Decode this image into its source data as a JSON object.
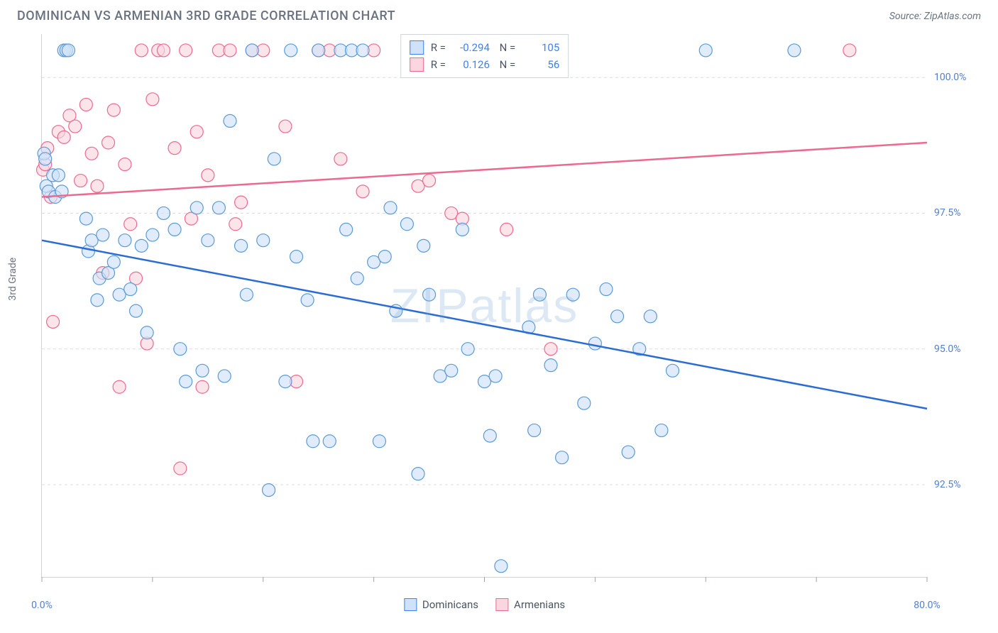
{
  "title": "DOMINICAN VS ARMENIAN 3RD GRADE CORRELATION CHART",
  "source": "Source: ZipAtlas.com",
  "watermark": "ZIPatlas",
  "y_axis_label": "3rd Grade",
  "x_range": {
    "min": 0,
    "max": 80,
    "min_label": "0.0%",
    "max_label": "80.0%"
  },
  "x_ticks_major": [
    0,
    10,
    20,
    30,
    40,
    50,
    60,
    70,
    80
  ],
  "y_range": {
    "min": 90.8,
    "max": 100.8
  },
  "y_ticks": [
    {
      "v": 92.5,
      "label": "92.5%"
    },
    {
      "v": 95.0,
      "label": "95.0%"
    },
    {
      "v": 97.5,
      "label": "97.5%"
    },
    {
      "v": 100.0,
      "label": "100.0%"
    }
  ],
  "grid_color": "#d9dde3",
  "legend_bottom": [
    {
      "label": "Dominicans",
      "fill": "#cfe2f9",
      "stroke": "#3b82f6"
    },
    {
      "label": "Armenians",
      "fill": "#fbd5e0",
      "stroke": "#ec6a8f"
    }
  ],
  "r_legend": [
    {
      "fill": "#cfe2f9",
      "stroke": "#3b82f6",
      "r": "-0.294",
      "n": "105"
    },
    {
      "fill": "#fbd5e0",
      "stroke": "#ec6a8f",
      "r": "0.126",
      "n": "56"
    }
  ],
  "series": {
    "dominicans": {
      "color_fill": "#cfe2f9",
      "color_stroke": "#5b9bd5",
      "marker_radius": 9,
      "trend": {
        "color": "#2b6cd4",
        "width": 2.5,
        "y_at_xmin": 97.0,
        "y_at_xmax": 93.9
      },
      "points": [
        [
          0.2,
          98.6
        ],
        [
          0.3,
          98.5
        ],
        [
          0.4,
          98.0
        ],
        [
          0.6,
          97.9
        ],
        [
          1.0,
          98.2
        ],
        [
          1.2,
          97.8
        ],
        [
          1.5,
          98.2
        ],
        [
          1.8,
          97.9
        ],
        [
          2.0,
          100.5
        ],
        [
          2.2,
          100.5
        ],
        [
          2.4,
          100.5
        ],
        [
          4.0,
          97.4
        ],
        [
          4.2,
          96.8
        ],
        [
          4.5,
          97.0
        ],
        [
          5.0,
          95.9
        ],
        [
          5.2,
          96.3
        ],
        [
          5.5,
          97.1
        ],
        [
          6.0,
          96.4
        ],
        [
          6.5,
          96.6
        ],
        [
          7.0,
          96.0
        ],
        [
          7.5,
          97.0
        ],
        [
          8.0,
          96.1
        ],
        [
          8.5,
          95.7
        ],
        [
          9.0,
          96.9
        ],
        [
          9.5,
          95.3
        ],
        [
          10.0,
          97.1
        ],
        [
          11.0,
          97.5
        ],
        [
          12.0,
          97.2
        ],
        [
          12.5,
          95.0
        ],
        [
          13.0,
          94.4
        ],
        [
          14.0,
          97.6
        ],
        [
          14.5,
          94.6
        ],
        [
          15.0,
          97.0
        ],
        [
          16.0,
          97.6
        ],
        [
          16.5,
          94.5
        ],
        [
          17.0,
          99.2
        ],
        [
          18.0,
          96.9
        ],
        [
          18.5,
          96.0
        ],
        [
          19.0,
          100.5
        ],
        [
          20.0,
          97.0
        ],
        [
          20.5,
          92.4
        ],
        [
          21.0,
          98.5
        ],
        [
          22.0,
          94.4
        ],
        [
          22.5,
          100.5
        ],
        [
          23.0,
          96.7
        ],
        [
          24.0,
          95.9
        ],
        [
          24.5,
          93.3
        ],
        [
          25.0,
          100.5
        ],
        [
          26.0,
          93.3
        ],
        [
          27.0,
          100.5
        ],
        [
          27.5,
          97.2
        ],
        [
          28.0,
          100.5
        ],
        [
          28.5,
          96.3
        ],
        [
          29.0,
          100.5
        ],
        [
          30.0,
          96.6
        ],
        [
          30.5,
          93.3
        ],
        [
          31.0,
          96.7
        ],
        [
          31.5,
          97.6
        ],
        [
          32.0,
          95.7
        ],
        [
          33.0,
          97.3
        ],
        [
          34.0,
          92.7
        ],
        [
          34.5,
          96.9
        ],
        [
          35.0,
          96.0
        ],
        [
          36.0,
          94.5
        ],
        [
          37.0,
          94.6
        ],
        [
          38.0,
          97.2
        ],
        [
          38.5,
          95.0
        ],
        [
          39.0,
          100.5
        ],
        [
          40.0,
          94.4
        ],
        [
          40.5,
          93.4
        ],
        [
          41.0,
          94.5
        ],
        [
          41.5,
          91.0
        ],
        [
          42.0,
          100.5
        ],
        [
          43.0,
          100.5
        ],
        [
          44.0,
          95.4
        ],
        [
          44.5,
          93.5
        ],
        [
          45.0,
          96.0
        ],
        [
          46.0,
          94.7
        ],
        [
          47.0,
          93.0
        ],
        [
          48.0,
          96.0
        ],
        [
          49.0,
          94.0
        ],
        [
          50.0,
          95.1
        ],
        [
          51.0,
          96.1
        ],
        [
          52.0,
          95.6
        ],
        [
          53.0,
          93.1
        ],
        [
          54.0,
          95.0
        ],
        [
          55.0,
          95.6
        ],
        [
          56.0,
          93.5
        ],
        [
          57.0,
          94.6
        ],
        [
          60.0,
          100.5
        ],
        [
          68.0,
          100.5
        ]
      ]
    },
    "armenians": {
      "color_fill": "#fbd5e0",
      "color_stroke": "#ec6a8f",
      "marker_radius": 9,
      "trend": {
        "color": "#ec6a8f",
        "width": 2.5,
        "y_at_xmin": 97.8,
        "y_at_xmax": 98.8
      },
      "points": [
        [
          0.1,
          98.3
        ],
        [
          0.3,
          98.4
        ],
        [
          0.5,
          98.7
        ],
        [
          0.8,
          97.8
        ],
        [
          1.0,
          95.5
        ],
        [
          1.5,
          99.0
        ],
        [
          2.0,
          98.9
        ],
        [
          2.5,
          99.3
        ],
        [
          3.0,
          99.1
        ],
        [
          3.5,
          98.1
        ],
        [
          4.0,
          99.5
        ],
        [
          4.5,
          98.6
        ],
        [
          5.0,
          98.0
        ],
        [
          5.5,
          96.4
        ],
        [
          6.0,
          98.8
        ],
        [
          6.5,
          99.4
        ],
        [
          7.0,
          94.3
        ],
        [
          7.5,
          98.4
        ],
        [
          8.0,
          97.3
        ],
        [
          8.5,
          96.3
        ],
        [
          9.0,
          100.5
        ],
        [
          9.5,
          95.1
        ],
        [
          10.0,
          99.6
        ],
        [
          10.5,
          100.5
        ],
        [
          11.0,
          100.5
        ],
        [
          12.0,
          98.7
        ],
        [
          12.5,
          92.8
        ],
        [
          13.0,
          100.5
        ],
        [
          13.5,
          97.4
        ],
        [
          14.0,
          99.0
        ],
        [
          14.5,
          94.3
        ],
        [
          15.0,
          98.2
        ],
        [
          16.0,
          100.5
        ],
        [
          17.0,
          100.5
        ],
        [
          17.5,
          97.3
        ],
        [
          18.0,
          97.7
        ],
        [
          19.0,
          100.5
        ],
        [
          20.0,
          100.5
        ],
        [
          22.0,
          99.1
        ],
        [
          23.0,
          94.4
        ],
        [
          25.0,
          100.5
        ],
        [
          26.0,
          100.5
        ],
        [
          27.0,
          98.5
        ],
        [
          29.0,
          97.9
        ],
        [
          30.0,
          100.5
        ],
        [
          34.0,
          98.0
        ],
        [
          35.0,
          98.1
        ],
        [
          37.0,
          97.5
        ],
        [
          38.0,
          97.4
        ],
        [
          42.0,
          97.2
        ],
        [
          46.0,
          95.0
        ],
        [
          73.0,
          100.5
        ]
      ]
    }
  }
}
